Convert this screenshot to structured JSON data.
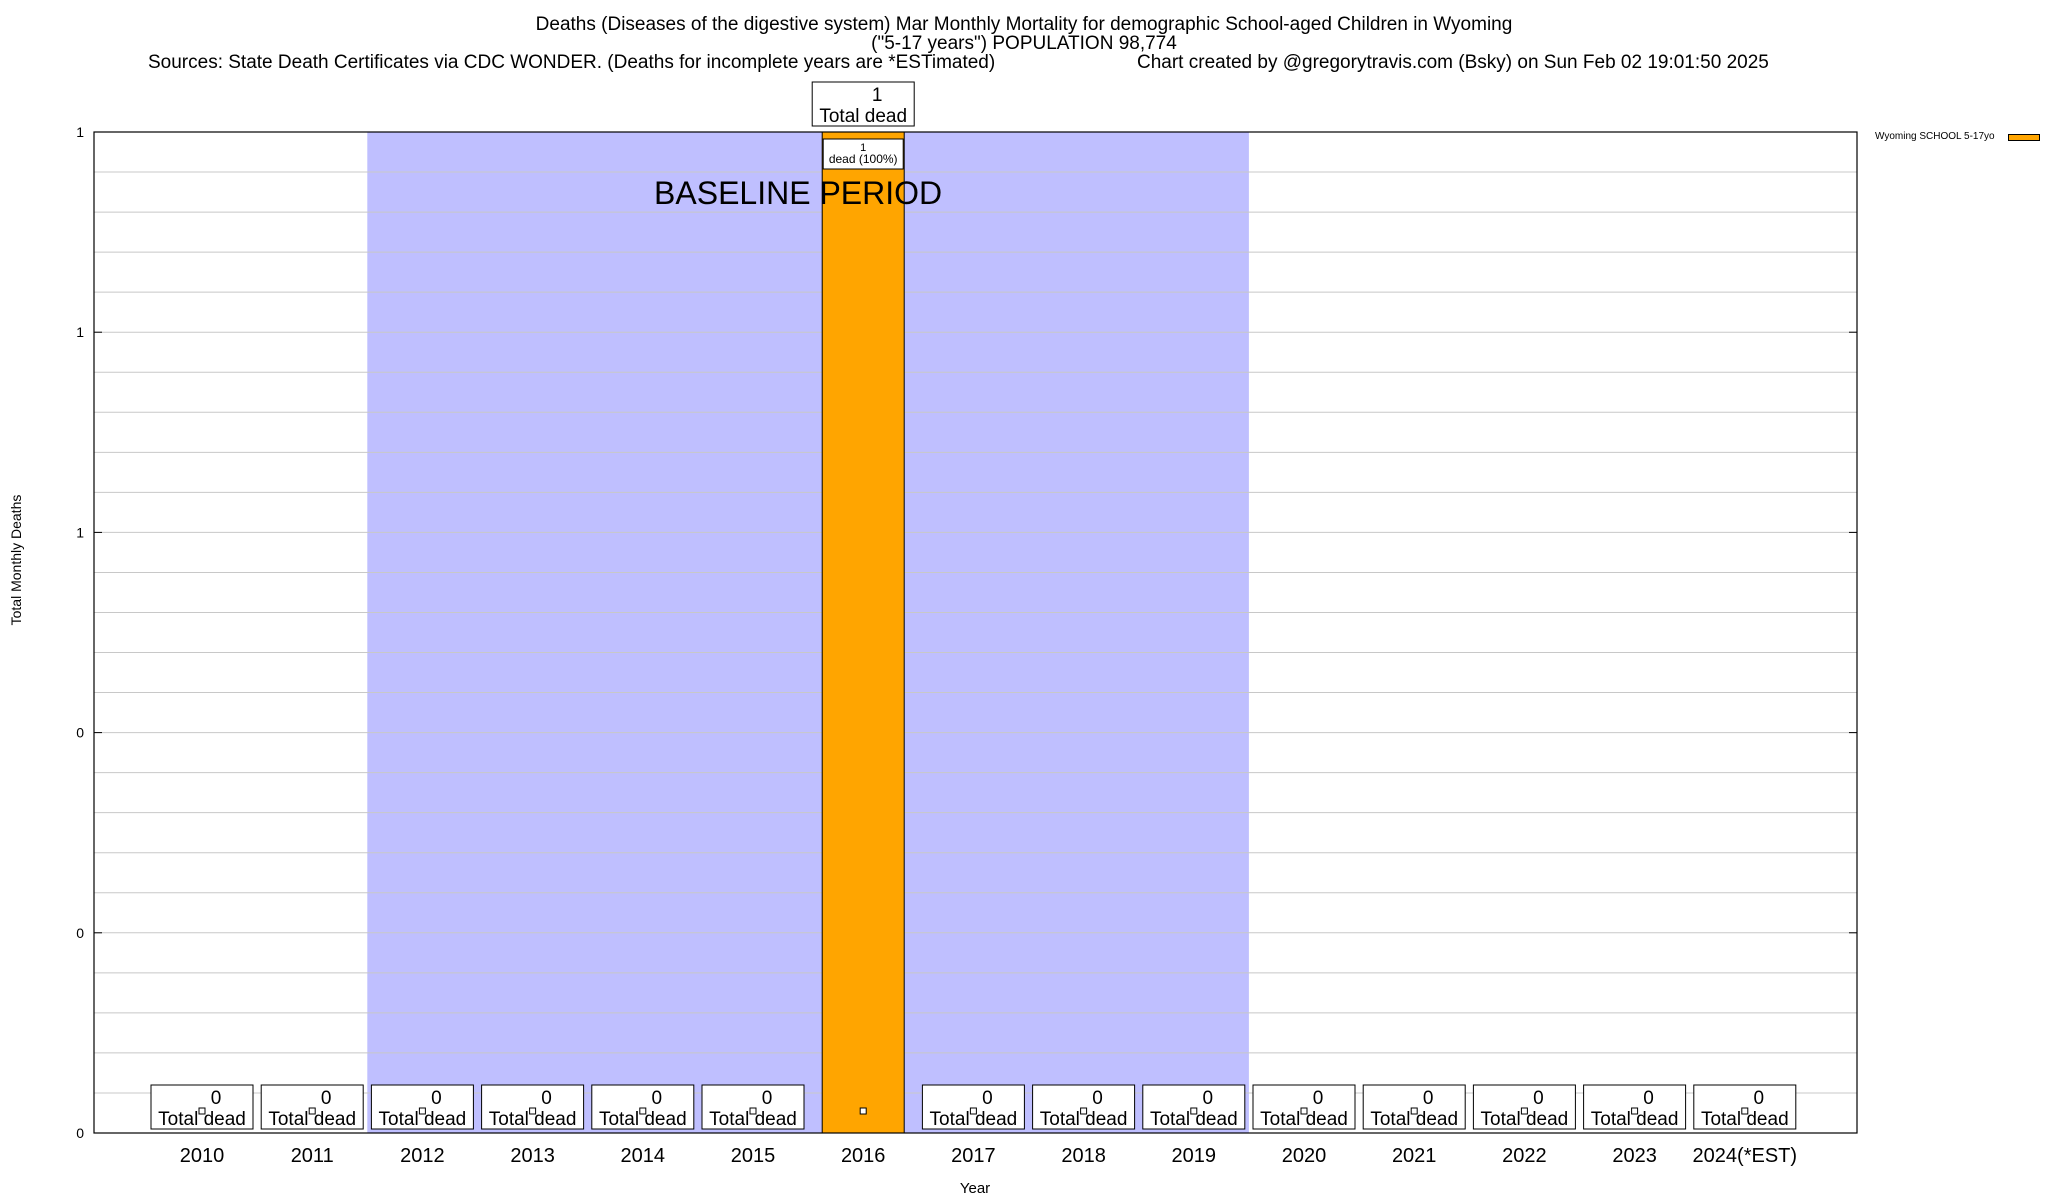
{
  "header": {
    "title": "Deaths (Diseases of the digestive system) Mar Monthly Mortality for demographic School-aged Children in Wyoming",
    "subtitle": "(\"5-17 years\") POPULATION 98,774",
    "sources": "Sources: State Death Certificates via CDC WONDER. (Deaths for incomplete years are *ESTimated)",
    "credit": "Chart created by @gregorytravis.com (Bsky) on Sun Feb 02 19:01:50 2025"
  },
  "chart_data": {
    "type": "bar",
    "xlabel": "Year",
    "ylabel": "Total Monthly Deaths",
    "ylim": [
      0,
      1
    ],
    "ytick_labels": [
      "0",
      "0",
      "0",
      "1",
      "1",
      "1"
    ],
    "categories": [
      "2010",
      "2011",
      "2012",
      "2013",
      "2014",
      "2015",
      "2016",
      "2017",
      "2018",
      "2019",
      "2020",
      "2021",
      "2022",
      "2023",
      "2024(*EST)"
    ],
    "series": [
      {
        "name": "Wyoming SCHOOL 5-17yo",
        "color": "#ffa500",
        "values": [
          0,
          0,
          0,
          0,
          0,
          0,
          1,
          0,
          0,
          0,
          0,
          0,
          0,
          0,
          0
        ]
      }
    ],
    "total_label_text": "Total dead",
    "bar_annotation": {
      "category": "2016",
      "count": "1",
      "text": "dead (100%)"
    },
    "baseline_period": {
      "label": "BASELINE PERIOD",
      "start": "2012",
      "end": "2019",
      "color": "#bfbfff"
    },
    "grid": true,
    "legend_position": "top-right"
  }
}
